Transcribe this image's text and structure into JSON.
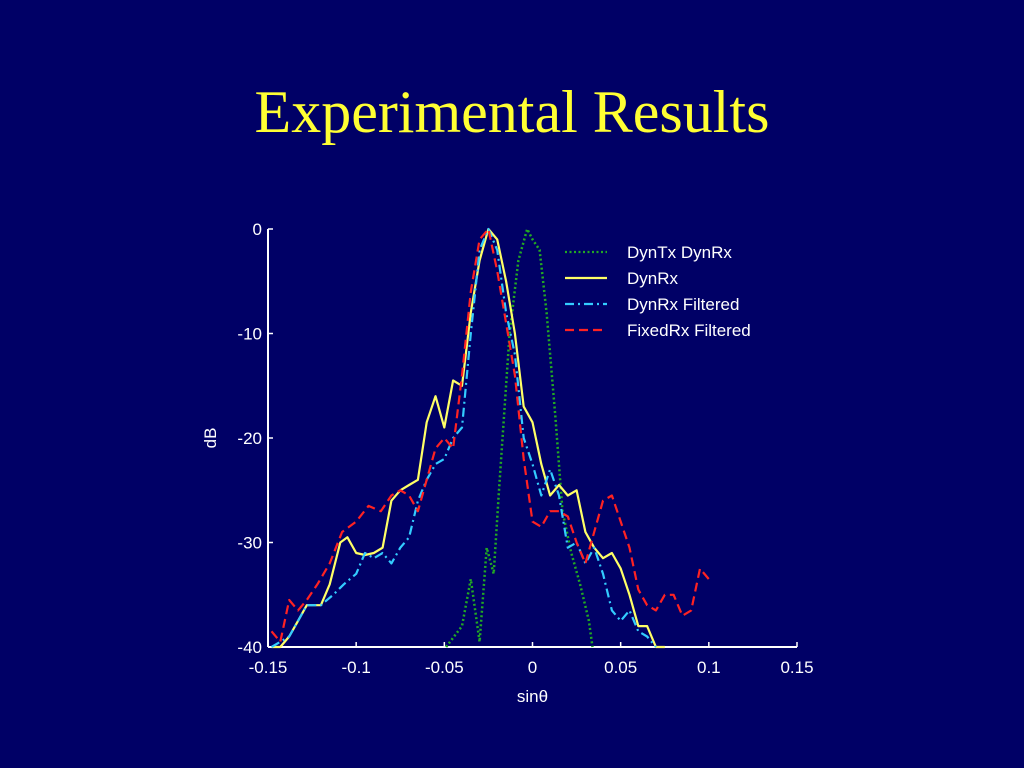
{
  "slide": {
    "title": "Experimental Results"
  },
  "colors": {
    "background": "#000066",
    "title": "#ffff33",
    "axis": "#ffffff"
  },
  "chart_data": {
    "type": "line",
    "title": "",
    "xlabel": "sinθ",
    "ylabel": "dB",
    "xlim": [
      -0.15,
      0.15
    ],
    "ylim": [
      -40,
      0
    ],
    "xticks": [
      -0.15,
      -0.1,
      -0.05,
      0,
      0.05,
      0.1,
      0.15
    ],
    "xtick_labels": [
      "-0.15",
      "-0.1",
      "-0.05",
      "0",
      "0.05",
      "0.1",
      "0.15"
    ],
    "yticks": [
      0,
      -10,
      -20,
      -30,
      -40
    ],
    "ytick_labels": [
      "0",
      "-10",
      "-20",
      "-30",
      "-40"
    ],
    "grid": false,
    "legend_position": "top-right",
    "series": [
      {
        "name": "DynTx DynRx",
        "color": "#22aa22",
        "style": "dotted",
        "points": [
          [
            -0.049,
            -40
          ],
          [
            -0.04,
            -38
          ],
          [
            -0.035,
            -33.5
          ],
          [
            -0.03,
            -39.5
          ],
          [
            -0.026,
            -30.5
          ],
          [
            -0.022,
            -33
          ],
          [
            -0.019,
            -25
          ],
          [
            -0.013,
            -10
          ],
          [
            -0.008,
            -3
          ],
          [
            -0.003,
            0
          ],
          [
            0,
            -1
          ],
          [
            0.004,
            -2
          ],
          [
            0.008,
            -8
          ],
          [
            0.013,
            -18
          ],
          [
            0.017,
            -27
          ],
          [
            0.022,
            -31
          ],
          [
            0.027,
            -34
          ],
          [
            0.032,
            -37.5
          ],
          [
            0.034,
            -40
          ]
        ]
      },
      {
        "name": "DynRx",
        "color": "#ffff66",
        "style": "solid",
        "points": [
          [
            -0.148,
            -40
          ],
          [
            -0.143,
            -40
          ],
          [
            -0.138,
            -39
          ],
          [
            -0.133,
            -37.5
          ],
          [
            -0.128,
            -36
          ],
          [
            -0.12,
            -36
          ],
          [
            -0.115,
            -34
          ],
          [
            -0.109,
            -30
          ],
          [
            -0.105,
            -29.5
          ],
          [
            -0.1,
            -31
          ],
          [
            -0.095,
            -31.2
          ],
          [
            -0.09,
            -31
          ],
          [
            -0.085,
            -30.5
          ],
          [
            -0.08,
            -26
          ],
          [
            -0.075,
            -25
          ],
          [
            -0.07,
            -24.5
          ],
          [
            -0.065,
            -24
          ],
          [
            -0.06,
            -18.5
          ],
          [
            -0.055,
            -16
          ],
          [
            -0.05,
            -19
          ],
          [
            -0.045,
            -14.5
          ],
          [
            -0.04,
            -15
          ],
          [
            -0.035,
            -8
          ],
          [
            -0.03,
            -3
          ],
          [
            -0.025,
            0
          ],
          [
            -0.02,
            -1
          ],
          [
            -0.015,
            -5
          ],
          [
            -0.01,
            -10
          ],
          [
            -0.005,
            -17
          ],
          [
            0,
            -18.5
          ],
          [
            0.005,
            -22.5
          ],
          [
            0.01,
            -25.5
          ],
          [
            0.015,
            -24.5
          ],
          [
            0.02,
            -25.5
          ],
          [
            0.025,
            -25
          ],
          [
            0.03,
            -29
          ],
          [
            0.035,
            -30.5
          ],
          [
            0.04,
            -31.5
          ],
          [
            0.045,
            -31
          ],
          [
            0.05,
            -32.5
          ],
          [
            0.055,
            -35
          ],
          [
            0.06,
            -38
          ],
          [
            0.065,
            -38
          ],
          [
            0.07,
            -40
          ],
          [
            0.075,
            -40
          ]
        ]
      },
      {
        "name": "DynRx Filtered",
        "color": "#33ccff",
        "style": "dashdot",
        "points": [
          [
            -0.148,
            -40
          ],
          [
            -0.143,
            -39.5
          ],
          [
            -0.138,
            -39
          ],
          [
            -0.133,
            -37.5
          ],
          [
            -0.128,
            -36
          ],
          [
            -0.12,
            -36
          ],
          [
            -0.113,
            -35
          ],
          [
            -0.107,
            -34
          ],
          [
            -0.1,
            -33
          ],
          [
            -0.095,
            -31
          ],
          [
            -0.09,
            -31.5
          ],
          [
            -0.085,
            -31
          ],
          [
            -0.08,
            -32
          ],
          [
            -0.075,
            -30.5
          ],
          [
            -0.07,
            -29.5
          ],
          [
            -0.065,
            -26
          ],
          [
            -0.06,
            -24
          ],
          [
            -0.055,
            -22.5
          ],
          [
            -0.05,
            -22
          ],
          [
            -0.045,
            -20
          ],
          [
            -0.04,
            -19
          ],
          [
            -0.035,
            -10
          ],
          [
            -0.03,
            -2
          ],
          [
            -0.025,
            0
          ],
          [
            -0.02,
            -2
          ],
          [
            -0.015,
            -8
          ],
          [
            -0.01,
            -12
          ],
          [
            -0.005,
            -20
          ],
          [
            0,
            -22.5
          ],
          [
            0.005,
            -25.5
          ],
          [
            0.01,
            -23
          ],
          [
            0.015,
            -25.5
          ],
          [
            0.02,
            -30.5
          ],
          [
            0.025,
            -30
          ],
          [
            0.03,
            -32
          ],
          [
            0.035,
            -30.5
          ],
          [
            0.04,
            -33
          ],
          [
            0.045,
            -36.5
          ],
          [
            0.05,
            -37.5
          ],
          [
            0.055,
            -36.5
          ],
          [
            0.06,
            -38.5
          ],
          [
            0.065,
            -39
          ],
          [
            0.07,
            -40
          ]
        ]
      },
      {
        "name": "FixedRx Filtered",
        "color": "#ff2222",
        "style": "dashed",
        "points": [
          [
            -0.148,
            -38.5
          ],
          [
            -0.143,
            -39.5
          ],
          [
            -0.138,
            -35.5
          ],
          [
            -0.133,
            -36.5
          ],
          [
            -0.128,
            -35.5
          ],
          [
            -0.122,
            -34
          ],
          [
            -0.115,
            -32
          ],
          [
            -0.108,
            -29
          ],
          [
            -0.1,
            -28
          ],
          [
            -0.093,
            -26.5
          ],
          [
            -0.086,
            -27
          ],
          [
            -0.08,
            -25.5
          ],
          [
            -0.075,
            -25
          ],
          [
            -0.07,
            -25.5
          ],
          [
            -0.065,
            -27
          ],
          [
            -0.06,
            -24
          ],
          [
            -0.055,
            -21
          ],
          [
            -0.05,
            -20
          ],
          [
            -0.045,
            -21
          ],
          [
            -0.04,
            -14
          ],
          [
            -0.035,
            -6
          ],
          [
            -0.03,
            -1
          ],
          [
            -0.025,
            0
          ],
          [
            -0.02,
            -4
          ],
          [
            -0.015,
            -9
          ],
          [
            -0.01,
            -14
          ],
          [
            -0.005,
            -22
          ],
          [
            0,
            -28
          ],
          [
            0.005,
            -28.5
          ],
          [
            0.01,
            -27
          ],
          [
            0.015,
            -27
          ],
          [
            0.02,
            -27.5
          ],
          [
            0.025,
            -30
          ],
          [
            0.03,
            -32
          ],
          [
            0.035,
            -29
          ],
          [
            0.04,
            -26
          ],
          [
            0.045,
            -25.5
          ],
          [
            0.05,
            -28
          ],
          [
            0.055,
            -30.5
          ],
          [
            0.06,
            -34.5
          ],
          [
            0.065,
            -36
          ],
          [
            0.07,
            -36.5
          ],
          [
            0.075,
            -35
          ],
          [
            0.08,
            -35
          ],
          [
            0.085,
            -37
          ],
          [
            0.09,
            -36.5
          ],
          [
            0.095,
            -32.5
          ],
          [
            0.1,
            -33.5
          ]
        ]
      }
    ]
  }
}
